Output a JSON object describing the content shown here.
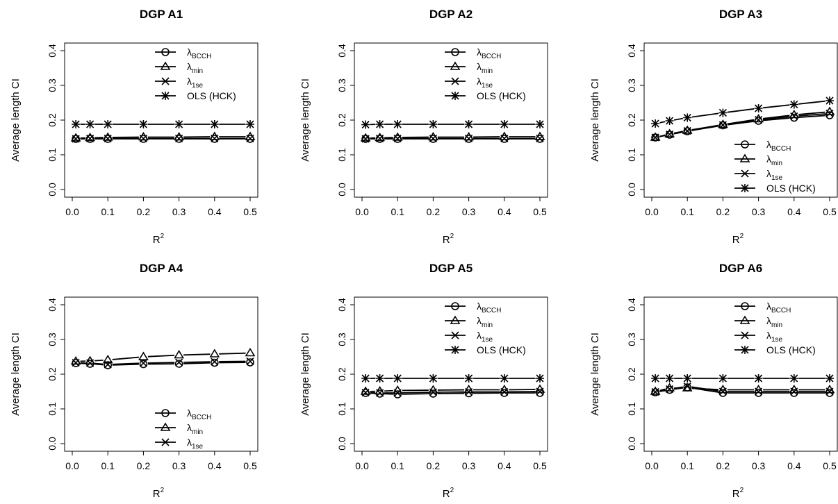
{
  "figure": {
    "ylabel": "Average length CI",
    "xlabel": "R",
    "xlabel_sup": "2"
  },
  "series_styles": [
    {
      "key": "bcch",
      "name": "λ",
      "sub": "BCCH",
      "marker": "circle"
    },
    {
      "key": "min",
      "name": "λ",
      "sub": "min",
      "marker": "triangle"
    },
    {
      "key": "1se",
      "name": "λ",
      "sub": "1se",
      "marker": "cross"
    },
    {
      "key": "ols",
      "name": "OLS (HCK)",
      "sub": "",
      "marker": "star"
    }
  ],
  "chart_data": [
    {
      "type": "line",
      "title": "DGP A1",
      "x": [
        0.01,
        0.05,
        0.1,
        0.2,
        0.3,
        0.4,
        0.5
      ],
      "xticks": [
        "0.0",
        "0.1",
        "0.2",
        "0.3",
        "0.4",
        "0.5"
      ],
      "yticks": [
        "0.0",
        "0.1",
        "0.2",
        "0.3",
        "0.4"
      ],
      "xlim": [
        0,
        0.5
      ],
      "ylim": [
        0,
        0.4
      ],
      "legend": "top-right",
      "legend_series": [
        "bcch",
        "min",
        "1se",
        "ols"
      ],
      "series": [
        {
          "key": "bcch",
          "values": [
            0.146,
            0.146,
            0.146,
            0.146,
            0.146,
            0.146,
            0.146
          ]
        },
        {
          "key": "min",
          "values": [
            0.148,
            0.149,
            0.15,
            0.151,
            0.151,
            0.152,
            0.152
          ]
        },
        {
          "key": "1se",
          "values": [
            0.146,
            0.147,
            0.147,
            0.147,
            0.147,
            0.147,
            0.147
          ]
        },
        {
          "key": "ols",
          "values": [
            0.188,
            0.188,
            0.188,
            0.188,
            0.188,
            0.188,
            0.188
          ]
        }
      ]
    },
    {
      "type": "line",
      "title": "DGP A2",
      "x": [
        0.01,
        0.05,
        0.1,
        0.2,
        0.3,
        0.4,
        0.5
      ],
      "xticks": [
        "0.0",
        "0.1",
        "0.2",
        "0.3",
        "0.4",
        "0.5"
      ],
      "yticks": [
        "0.0",
        "0.1",
        "0.2",
        "0.3",
        "0.4"
      ],
      "xlim": [
        0,
        0.5
      ],
      "ylim": [
        0,
        0.4
      ],
      "legend": "top-right",
      "legend_series": [
        "bcch",
        "min",
        "1se",
        "ols"
      ],
      "series": [
        {
          "key": "bcch",
          "values": [
            0.146,
            0.146,
            0.146,
            0.146,
            0.146,
            0.146,
            0.146
          ]
        },
        {
          "key": "min",
          "values": [
            0.148,
            0.149,
            0.15,
            0.151,
            0.151,
            0.152,
            0.152
          ]
        },
        {
          "key": "1se",
          "values": [
            0.146,
            0.147,
            0.147,
            0.147,
            0.147,
            0.147,
            0.147
          ]
        },
        {
          "key": "ols",
          "values": [
            0.187,
            0.188,
            0.188,
            0.188,
            0.188,
            0.188,
            0.188
          ]
        }
      ]
    },
    {
      "type": "line",
      "title": "DGP A3",
      "x": [
        0.01,
        0.05,
        0.1,
        0.2,
        0.3,
        0.4,
        0.5
      ],
      "xticks": [
        "0.0",
        "0.1",
        "0.2",
        "0.3",
        "0.4",
        "0.5"
      ],
      "yticks": [
        "0.0",
        "0.1",
        "0.2",
        "0.3",
        "0.4"
      ],
      "xlim": [
        0,
        0.5
      ],
      "ylim": [
        0,
        0.4
      ],
      "legend": "bottom-right",
      "legend_series": [
        "bcch",
        "min",
        "1se",
        "ols"
      ],
      "series": [
        {
          "key": "bcch",
          "values": [
            0.15,
            0.158,
            0.168,
            0.185,
            0.198,
            0.207,
            0.214
          ]
        },
        {
          "key": "min",
          "values": [
            0.15,
            0.16,
            0.17,
            0.187,
            0.203,
            0.215,
            0.224
          ]
        },
        {
          "key": "1se",
          "values": [
            0.15,
            0.159,
            0.169,
            0.186,
            0.201,
            0.211,
            0.219
          ]
        },
        {
          "key": "ols",
          "values": [
            0.19,
            0.198,
            0.207,
            0.221,
            0.234,
            0.245,
            0.256
          ]
        }
      ]
    },
    {
      "type": "line",
      "title": "DGP A4",
      "x": [
        0.01,
        0.05,
        0.1,
        0.2,
        0.3,
        0.4,
        0.5
      ],
      "xticks": [
        "0.0",
        "0.1",
        "0.2",
        "0.3",
        "0.4",
        "0.5"
      ],
      "yticks": [
        "0.0",
        "0.1",
        "0.2",
        "0.3",
        "0.4"
      ],
      "xlim": [
        0,
        0.5
      ],
      "ylim": [
        0,
        0.4
      ],
      "legend": "bottom-right",
      "legend_series": [
        "bcch",
        "min",
        "1se"
      ],
      "series": [
        {
          "key": "bcch",
          "values": [
            0.232,
            0.23,
            0.226,
            0.229,
            0.23,
            0.233,
            0.234
          ]
        },
        {
          "key": "min",
          "values": [
            0.237,
            0.238,
            0.241,
            0.25,
            0.255,
            0.258,
            0.261
          ]
        },
        {
          "key": "1se",
          "values": [
            0.233,
            0.232,
            0.228,
            0.232,
            0.234,
            0.236,
            0.237
          ]
        }
      ]
    },
    {
      "type": "line",
      "title": "DGP A5",
      "x": [
        0.01,
        0.05,
        0.1,
        0.2,
        0.3,
        0.4,
        0.5
      ],
      "xticks": [
        "0.0",
        "0.1",
        "0.2",
        "0.3",
        "0.4",
        "0.5"
      ],
      "yticks": [
        "0.0",
        "0.1",
        "0.2",
        "0.3",
        "0.4"
      ],
      "xlim": [
        0,
        0.5
      ],
      "ylim": [
        0,
        0.4
      ],
      "legend": "top-right",
      "legend_series": [
        "bcch",
        "min",
        "1se",
        "ols"
      ],
      "series": [
        {
          "key": "bcch",
          "values": [
            0.146,
            0.144,
            0.142,
            0.144,
            0.145,
            0.146,
            0.146
          ]
        },
        {
          "key": "min",
          "values": [
            0.15,
            0.151,
            0.153,
            0.154,
            0.155,
            0.155,
            0.156
          ]
        },
        {
          "key": "1se",
          "values": [
            0.147,
            0.146,
            0.146,
            0.148,
            0.149,
            0.149,
            0.15
          ]
        },
        {
          "key": "ols",
          "values": [
            0.188,
            0.188,
            0.188,
            0.188,
            0.188,
            0.188,
            0.188
          ]
        }
      ]
    },
    {
      "type": "line",
      "title": "DGP A6",
      "x": [
        0.01,
        0.05,
        0.1,
        0.2,
        0.3,
        0.4,
        0.5
      ],
      "xticks": [
        "0.0",
        "0.1",
        "0.2",
        "0.3",
        "0.4",
        "0.5"
      ],
      "yticks": [
        "0.0",
        "0.1",
        "0.2",
        "0.3",
        "0.4"
      ],
      "xlim": [
        0,
        0.5
      ],
      "ylim": [
        0,
        0.4
      ],
      "legend": "top-right",
      "legend_series": [
        "bcch",
        "min",
        "1se",
        "ols"
      ],
      "series": [
        {
          "key": "bcch",
          "values": [
            0.148,
            0.155,
            0.162,
            0.146,
            0.146,
            0.146,
            0.146
          ]
        },
        {
          "key": "min",
          "values": [
            0.15,
            0.16,
            0.16,
            0.155,
            0.155,
            0.155,
            0.155
          ]
        },
        {
          "key": "1se",
          "values": [
            0.149,
            0.157,
            0.165,
            0.15,
            0.15,
            0.15,
            0.15
          ]
        },
        {
          "key": "ols",
          "values": [
            0.188,
            0.188,
            0.188,
            0.188,
            0.188,
            0.188,
            0.188
          ]
        }
      ]
    }
  ]
}
